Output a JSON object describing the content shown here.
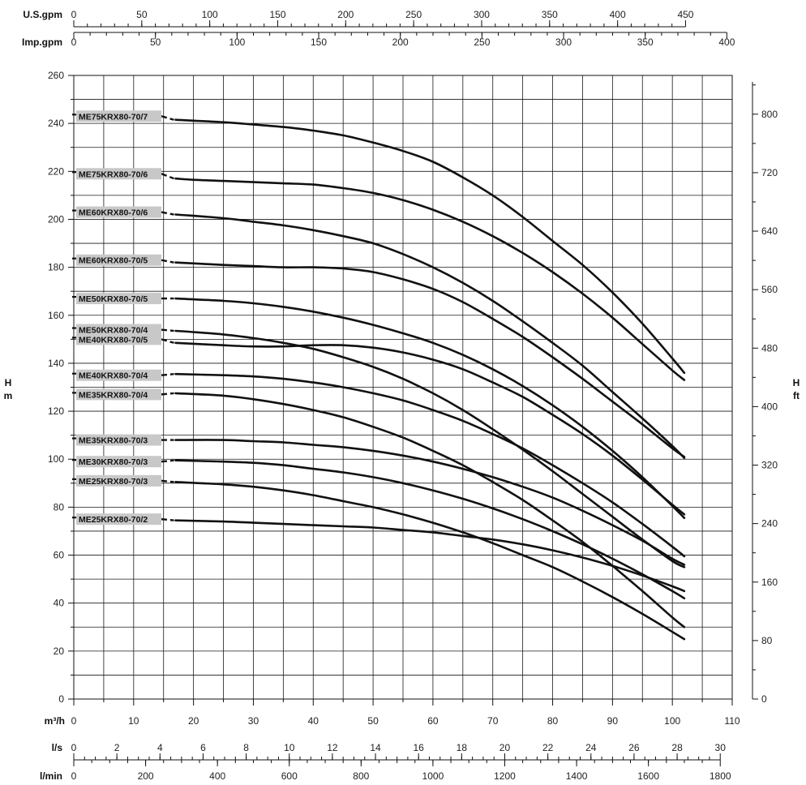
{
  "chart_data": {
    "type": "line",
    "title": "",
    "grid": true,
    "axes": {
      "bottom_m3h": {
        "label": "m³/h",
        "range": [
          0,
          110
        ],
        "ticks": [
          "0",
          "10",
          "20",
          "30",
          "40",
          "50",
          "60",
          "70",
          "80",
          "90",
          "100",
          "110"
        ]
      },
      "bottom_ls": {
        "label": "l/s",
        "range": [
          0,
          30
        ],
        "ticks": [
          "0",
          "2",
          "4",
          "6",
          "8",
          "10",
          "12",
          "14",
          "16",
          "18",
          "20",
          "22",
          "24",
          "26",
          "28",
          "30"
        ]
      },
      "bottom_lmin": {
        "label": "l/min",
        "range": [
          0,
          1800
        ],
        "ticks": [
          "0",
          "200",
          "400",
          "600",
          "800",
          "1000",
          "1200",
          "1400",
          "1600",
          "1800"
        ]
      },
      "top_usgpm": {
        "label": "U.S.gpm",
        "range": [
          0,
          450
        ],
        "ticks": [
          "0",
          "50",
          "100",
          "150",
          "200",
          "250",
          "300",
          "350",
          "400",
          "450"
        ]
      },
      "top_impgpm": {
        "label": "Imp.gpm",
        "range": [
          0,
          400
        ],
        "ticks": [
          "0",
          "50",
          "100",
          "150",
          "200",
          "250",
          "300",
          "350",
          "400"
        ]
      },
      "left_m": {
        "label_line1": "H",
        "label_line2": "m",
        "range": [
          0,
          260
        ],
        "ticks": [
          "0",
          "20",
          "40",
          "60",
          "80",
          "100",
          "120",
          "140",
          "160",
          "180",
          "200",
          "220",
          "240",
          "260"
        ]
      },
      "right_ft": {
        "label_line1": "H",
        "label_line2": "ft",
        "range": [
          0,
          853
        ],
        "ticks": [
          "0",
          "80",
          "160",
          "240",
          "320",
          "400",
          "480",
          "560",
          "640",
          "720",
          "800"
        ]
      }
    },
    "series": [
      {
        "name": "ME75KRX80-70/7",
        "label_head": 243,
        "x": [
          17,
          25,
          30,
          35,
          40,
          45,
          50,
          55,
          60,
          65,
          70,
          75,
          80,
          85,
          90,
          95,
          100,
          102
        ],
        "y": [
          241.5,
          240.5,
          239.5,
          238.5,
          237,
          235,
          232,
          228.5,
          224,
          217.5,
          210,
          201,
          191,
          181,
          169.5,
          156.5,
          142,
          136
        ]
      },
      {
        "name": "ME75KRX80-70/6",
        "label_head": 219,
        "x": [
          17,
          20,
          25,
          30,
          35,
          40,
          45,
          50,
          55,
          60,
          65,
          70,
          75,
          80,
          85,
          90,
          95,
          100,
          102
        ],
        "y": [
          217,
          216.5,
          216,
          215.5,
          215,
          214.5,
          213,
          211,
          208,
          204,
          199,
          193,
          186,
          178,
          169,
          159,
          148,
          137,
          133
        ]
      },
      {
        "name": "ME60KRX80-70/6",
        "label_head": 203,
        "x": [
          17,
          25,
          30,
          35,
          40,
          45,
          50,
          55,
          60,
          65,
          70,
          75,
          80,
          85,
          90,
          95,
          100,
          102
        ],
        "y": [
          202,
          200.5,
          199,
          197.5,
          195.5,
          193,
          190,
          185.5,
          180,
          173.5,
          166,
          157.5,
          148.5,
          139,
          128,
          117,
          105.5,
          100.5
        ]
      },
      {
        "name": "ME60KRX80-70/5",
        "label_head": 183,
        "x": [
          17,
          25,
          30,
          35,
          40,
          45,
          50,
          55,
          60,
          65,
          70,
          75,
          80,
          85,
          90,
          95,
          100,
          102
        ],
        "y": [
          182,
          181,
          180.5,
          180,
          180,
          179.5,
          178,
          175,
          171,
          165.5,
          158.5,
          151,
          142.5,
          133.5,
          124,
          114.5,
          104.5,
          101
        ]
      },
      {
        "name": "ME50KRX80-70/5",
        "label_head": 167,
        "x": [
          17,
          25,
          30,
          35,
          40,
          45,
          50,
          55,
          60,
          65,
          70,
          75,
          80,
          85,
          90,
          95,
          100,
          102
        ],
        "y": [
          167,
          166,
          165,
          163.5,
          161.5,
          159,
          156,
          152.5,
          148.5,
          143.5,
          137.5,
          130.5,
          122.5,
          113.5,
          103.5,
          92.5,
          80.5,
          75.5
        ]
      },
      {
        "name": "ME50KRX80-70/4",
        "label_head": 154,
        "x": [
          17,
          20,
          25,
          30,
          35,
          40,
          45,
          50,
          55,
          60,
          65,
          70,
          75,
          80,
          85,
          90,
          95,
          100,
          102
        ],
        "y": [
          153.5,
          153,
          152,
          150.5,
          148.5,
          146,
          142.5,
          138.5,
          133.5,
          127.5,
          120.5,
          112.5,
          104,
          95,
          85.5,
          76,
          66.5,
          57.5,
          55
        ]
      },
      {
        "name": "ME40KRX80-70/5",
        "label_head": 150,
        "x": [
          17,
          25,
          30,
          35,
          40,
          45,
          50,
          55,
          60,
          65,
          70,
          75,
          80,
          85,
          90,
          95,
          100,
          102
        ],
        "y": [
          148.5,
          147.5,
          147,
          147,
          147.5,
          147.5,
          146.5,
          144.5,
          141.5,
          137.5,
          132,
          126,
          118.5,
          110.5,
          101.5,
          91.5,
          81,
          77
        ]
      },
      {
        "name": "ME40KRX80-70/4",
        "label_head": 135,
        "x": [
          17,
          25,
          30,
          35,
          40,
          45,
          50,
          55,
          60,
          65,
          70,
          75,
          80,
          85,
          90,
          95,
          100,
          102
        ],
        "y": [
          135.5,
          135,
          134.5,
          133.5,
          132,
          130,
          127.5,
          124.5,
          120.5,
          116,
          110.5,
          104.5,
          97.5,
          90,
          82,
          73,
          63.5,
          59.5
        ]
      },
      {
        "name": "ME35KRX80-70/4",
        "label_head": 127,
        "x": [
          17,
          25,
          30,
          35,
          40,
          45,
          50,
          55,
          60,
          65,
          70,
          75,
          80,
          85,
          90,
          95,
          100,
          102
        ],
        "y": [
          127.5,
          126.5,
          125,
          123,
          120.5,
          117.5,
          113.5,
          109,
          103.5,
          97.5,
          90.5,
          83,
          74.5,
          65.5,
          55.5,
          45,
          34,
          30
        ]
      },
      {
        "name": "ME35KRX80-70/3",
        "label_head": 108,
        "x": [
          17,
          25,
          30,
          35,
          40,
          45,
          50,
          55,
          60,
          65,
          70,
          75,
          80,
          85,
          90,
          95,
          100,
          102
        ],
        "y": [
          108,
          108,
          107.5,
          107,
          106,
          105,
          103.5,
          101.5,
          99,
          96,
          92.5,
          88.5,
          84,
          78.5,
          72.5,
          66,
          58.5,
          56
        ]
      },
      {
        "name": "ME30KRX80-70/3",
        "label_head": 99,
        "x": [
          17,
          25,
          30,
          35,
          40,
          45,
          50,
          55,
          60,
          65,
          70,
          75,
          80,
          85,
          90,
          95,
          100,
          102
        ],
        "y": [
          99.5,
          99,
          98.5,
          97.5,
          96,
          94.5,
          92.5,
          90,
          87,
          83.5,
          79.5,
          75,
          70,
          64.5,
          58.5,
          52,
          45,
          42
        ]
      },
      {
        "name": "ME25KRX80-70/3",
        "label_head": 91,
        "x": [
          17,
          25,
          30,
          35,
          40,
          45,
          50,
          55,
          60,
          65,
          70,
          75,
          80,
          85,
          90,
          95,
          100,
          102
        ],
        "y": [
          90.5,
          89.5,
          88.5,
          87,
          85,
          82.5,
          80,
          77,
          73.5,
          69.5,
          65,
          60,
          55,
          49,
          42.5,
          35.5,
          28,
          25
        ]
      },
      {
        "name": "ME25KRX80-70/2",
        "label_head": 75,
        "x": [
          17,
          25,
          30,
          35,
          40,
          45,
          50,
          55,
          60,
          65,
          70,
          75,
          80,
          85,
          90,
          95,
          100,
          102
        ],
        "y": [
          74.5,
          74,
          73.5,
          73,
          72.5,
          72,
          71.5,
          70.5,
          69.5,
          68,
          66.5,
          64.5,
          62,
          59,
          55.5,
          51.5,
          47,
          45
        ]
      }
    ]
  }
}
